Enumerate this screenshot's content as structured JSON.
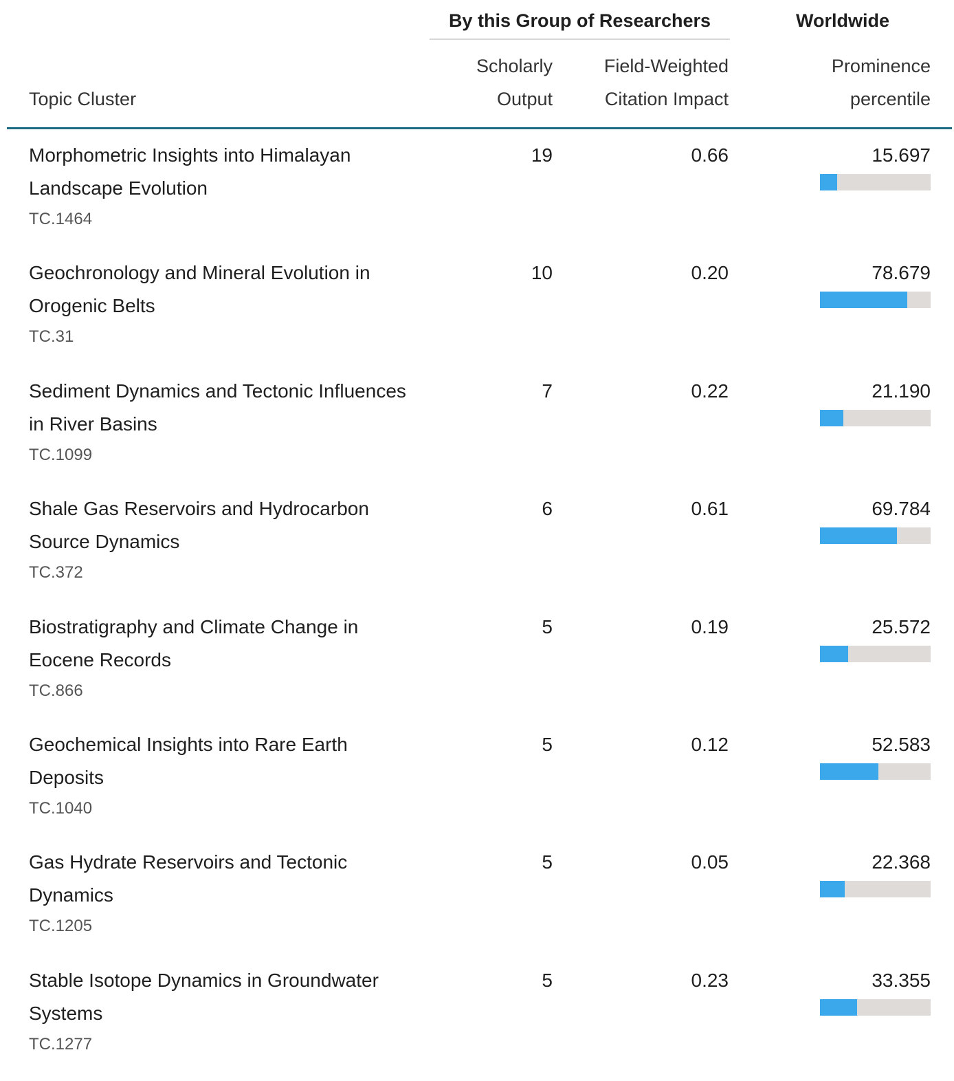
{
  "header": {
    "group_researchers": "By this Group of Researchers",
    "group_worldwide": "Worldwide",
    "col_topic": "Topic Cluster",
    "col_output": [
      "Scholarly",
      "Output"
    ],
    "col_fwci": [
      "Field-Weighted",
      "Citation Impact"
    ],
    "col_prominence": [
      "Prominence",
      "percentile"
    ]
  },
  "table": {
    "rows": [
      {
        "topic": "Morphometric Insights into Himalayan Landscape Evolution",
        "code": "TC.1464",
        "output": 19,
        "fwci": "0.66",
        "prominence": {
          "value": 15.697,
          "label": "15.697"
        }
      },
      {
        "topic": "Geochronology and Mineral Evolution in Orogenic Belts",
        "code": "TC.31",
        "output": 10,
        "fwci": "0.20",
        "prominence": {
          "value": 78.679,
          "label": "78.679"
        }
      },
      {
        "topic": "Sediment Dynamics and Tectonic Influences in River Basins",
        "code": "TC.1099",
        "output": 7,
        "fwci": "0.22",
        "prominence": {
          "value": 21.19,
          "label": "21.190"
        }
      },
      {
        "topic": "Shale Gas Reservoirs and Hydrocarbon Source Dynamics",
        "code": "TC.372",
        "output": 6,
        "fwci": "0.61",
        "prominence": {
          "value": 69.784,
          "label": "69.784"
        }
      },
      {
        "topic": "Biostratigraphy and Climate Change in Eocene Records",
        "code": "TC.866",
        "output": 5,
        "fwci": "0.19",
        "prominence": {
          "value": 25.572,
          "label": "25.572"
        }
      },
      {
        "topic": "Geochemical Insights into Rare Earth Deposits",
        "code": "TC.1040",
        "output": 5,
        "fwci": "0.12",
        "prominence": {
          "value": 52.583,
          "label": "52.583"
        }
      },
      {
        "topic": "Gas Hydrate Reservoirs and Tectonic Dynamics",
        "code": "TC.1205",
        "output": 5,
        "fwci": "0.05",
        "prominence": {
          "value": 22.368,
          "label": "22.368"
        }
      },
      {
        "topic": "Stable Isotope Dynamics in Groundwater Systems",
        "code": "TC.1277",
        "output": 5,
        "fwci": "0.23",
        "prominence": {
          "value": 33.355,
          "label": "33.355"
        }
      }
    ]
  }
}
